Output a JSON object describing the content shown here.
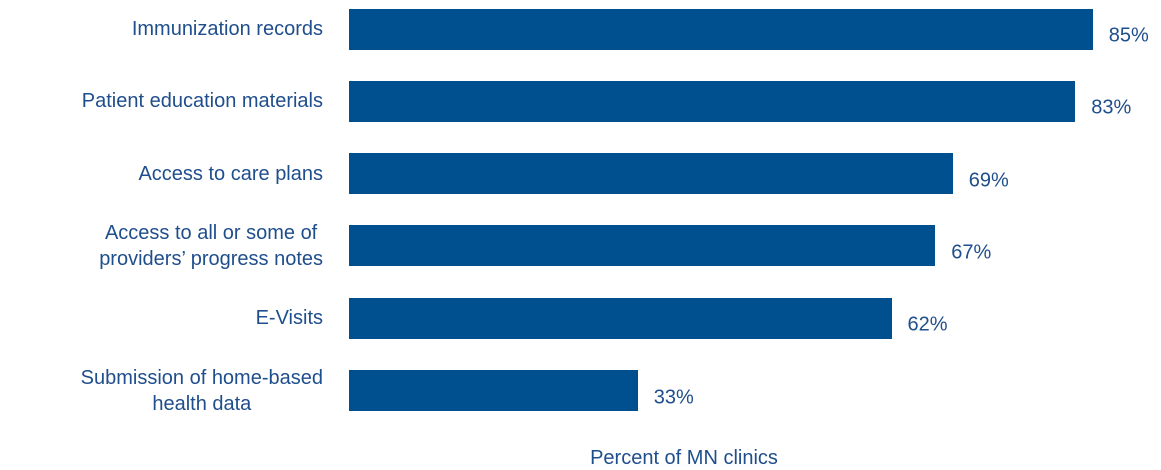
{
  "chart_data": {
    "type": "bar",
    "orientation": "horizontal",
    "categories": [
      "Immunization records",
      "Patient education materials",
      "Access to care plans",
      "Access to all or some of\nproviders’ progress notes",
      "E-Visits",
      "Submission of home-based\nhealth data"
    ],
    "values": [
      85,
      83,
      69,
      67,
      62,
      33
    ],
    "value_labels": [
      "85%",
      "83%",
      "69%",
      "67%",
      "62%",
      "33%"
    ],
    "color": "#004f8f",
    "xlim": [
      0,
      100
    ],
    "xlabel": "Percent of MN clinics"
  }
}
